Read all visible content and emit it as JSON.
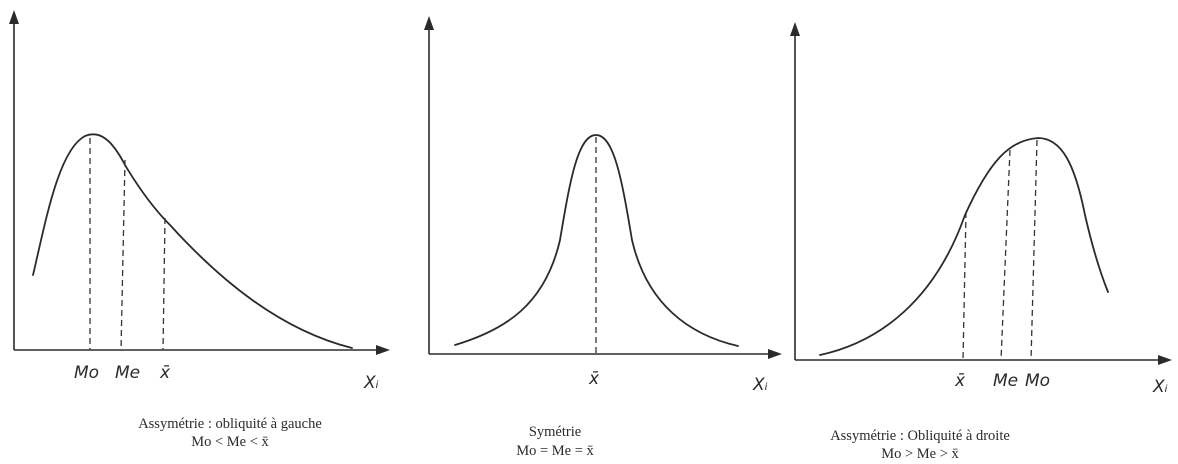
{
  "panels": [
    {
      "id": "left",
      "caption_line1": "Assymétrie : obliquité à gauche",
      "caption_line2": "Mo < Me < x̄",
      "axis_label": "Xᵢ",
      "markers": [
        "Mo",
        "Me",
        "x̄"
      ]
    },
    {
      "id": "middle",
      "caption_line1": "Symétrie",
      "caption_line2": "Mo = Me = x̄",
      "axis_label": "Xᵢ",
      "markers": [
        "x̄"
      ]
    },
    {
      "id": "right",
      "caption_line1": "Assymétrie : Obliquité à droite",
      "caption_line2": "Mo > Me > x̄",
      "axis_label": "Xᵢ",
      "markers": [
        "x̄",
        "Me",
        "Mo"
      ]
    }
  ]
}
